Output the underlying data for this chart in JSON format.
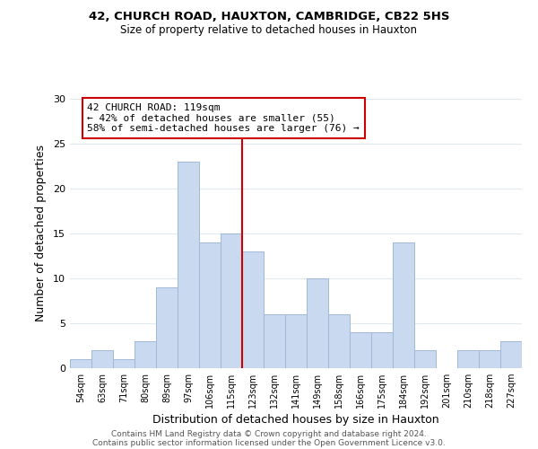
{
  "title1": "42, CHURCH ROAD, HAUXTON, CAMBRIDGE, CB22 5HS",
  "title2": "Size of property relative to detached houses in Hauxton",
  "xlabel": "Distribution of detached houses by size in Hauxton",
  "ylabel": "Number of detached properties",
  "bin_labels": [
    "54sqm",
    "63sqm",
    "71sqm",
    "80sqm",
    "89sqm",
    "97sqm",
    "106sqm",
    "115sqm",
    "123sqm",
    "132sqm",
    "141sqm",
    "149sqm",
    "158sqm",
    "166sqm",
    "175sqm",
    "184sqm",
    "192sqm",
    "201sqm",
    "210sqm",
    "218sqm",
    "227sqm"
  ],
  "bar_heights": [
    1,
    2,
    1,
    3,
    9,
    23,
    14,
    15,
    13,
    6,
    6,
    10,
    6,
    4,
    4,
    14,
    2,
    0,
    2,
    2,
    3
  ],
  "bar_color": "#c8d9f0",
  "bar_edge_color": "#a0b8d8",
  "vline_color": "#cc0000",
  "annotation_text": "42 CHURCH ROAD: 119sqm\n← 42% of detached houses are smaller (55)\n58% of semi-detached houses are larger (76) →",
  "annotation_box_color": "#ffffff",
  "annotation_box_edge_color": "#cc0000",
  "footer1": "Contains HM Land Registry data © Crown copyright and database right 2024.",
  "footer2": "Contains public sector information licensed under the Open Government Licence v3.0.",
  "ylim": [
    0,
    30
  ],
  "yticks": [
    0,
    5,
    10,
    15,
    20,
    25,
    30
  ],
  "background_color": "#ffffff",
  "grid_color": "#e0e8f0"
}
